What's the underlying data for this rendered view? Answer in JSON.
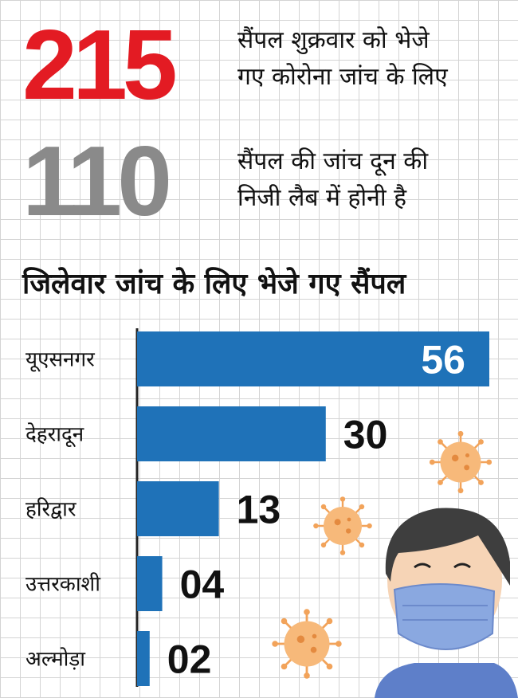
{
  "stats": [
    {
      "value": "215",
      "text_line1": "सैंपल शुक्रवार को भेजे",
      "text_line2": "गए कोरोना जांच के लिए",
      "color": "#e31b23"
    },
    {
      "value": "110",
      "text_line1": "सैंपल की जांच दून की",
      "text_line2": "निजी लैब में होनी है",
      "color": "#8a8a8a"
    }
  ],
  "chart_data": {
    "type": "bar",
    "orientation": "horizontal",
    "title": "जिलेवार जांच के लिए भेजे गए सैंपल",
    "categories": [
      "यूएसनगर",
      "देहरादून",
      "हरिद्वार",
      "उत्तरकाशी",
      "अल्मोड़ा"
    ],
    "values": [
      56,
      30,
      13,
      4,
      2
    ],
    "data_labels": [
      "56",
      "30",
      "13",
      "04",
      "02"
    ],
    "xlim": [
      0,
      56
    ],
    "bar_color": "#1f72b8",
    "grid": true
  },
  "illustration": {
    "icons": [
      "virus-icon",
      "virus-icon",
      "virus-icon",
      "virus-icon",
      "masked-person-icon"
    ],
    "virus_color": "#f2a35a",
    "mask_color": "#8aa8e0"
  }
}
